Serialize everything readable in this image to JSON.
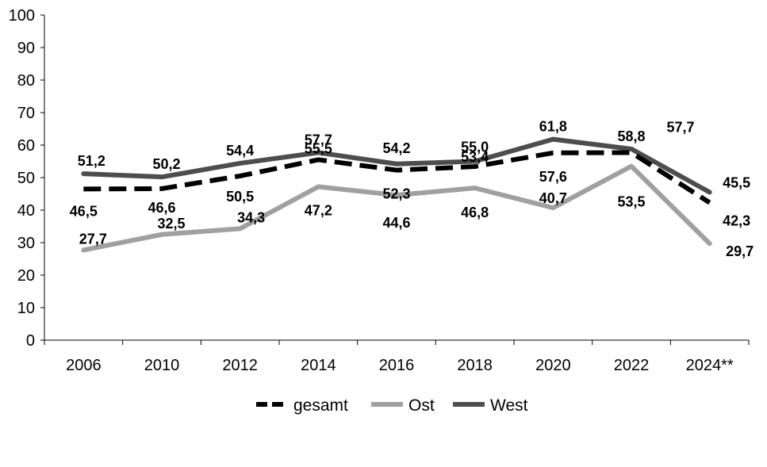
{
  "chart_data": {
    "type": "line",
    "title": "",
    "xlabel": "",
    "ylabel": "",
    "categories": [
      "2006",
      "2010",
      "2012",
      "2014",
      "2016",
      "2018",
      "2020",
      "2022",
      "2024**"
    ],
    "ylim": [
      0,
      100
    ],
    "yticks": [
      0,
      10,
      20,
      30,
      40,
      50,
      60,
      70,
      80,
      90,
      100
    ],
    "grid": false,
    "legend_position": "bottom",
    "series": [
      {
        "name": "gesamt",
        "values": [
          46.5,
          46.6,
          50.5,
          55.5,
          52.3,
          53.4,
          57.6,
          57.7,
          42.3
        ],
        "labels": [
          "46,5",
          "46,6",
          "50,5",
          "55,5",
          "52,3",
          "53,4",
          "57,6",
          "57,7",
          "42,3"
        ],
        "color": "#000000",
        "style": "dashed"
      },
      {
        "name": "Ost",
        "values": [
          27.7,
          32.5,
          34.3,
          47.2,
          44.6,
          46.8,
          40.7,
          53.5,
          29.7
        ],
        "labels": [
          "27,7",
          "32,5",
          "34,3",
          "47,2",
          "44,6",
          "46,8",
          "40,7",
          "53,5",
          "29,7"
        ],
        "color": "#a0a0a0",
        "style": "solid"
      },
      {
        "name": "West",
        "values": [
          51.2,
          50.2,
          54.4,
          57.7,
          54.2,
          55.0,
          61.8,
          58.8,
          45.5
        ],
        "labels": [
          "51,2",
          "50,2",
          "54,4",
          "57,7",
          "54,2",
          "55,0",
          "61,8",
          "58,8",
          "45,5"
        ],
        "color": "#4d4d4d",
        "style": "solid"
      }
    ]
  }
}
